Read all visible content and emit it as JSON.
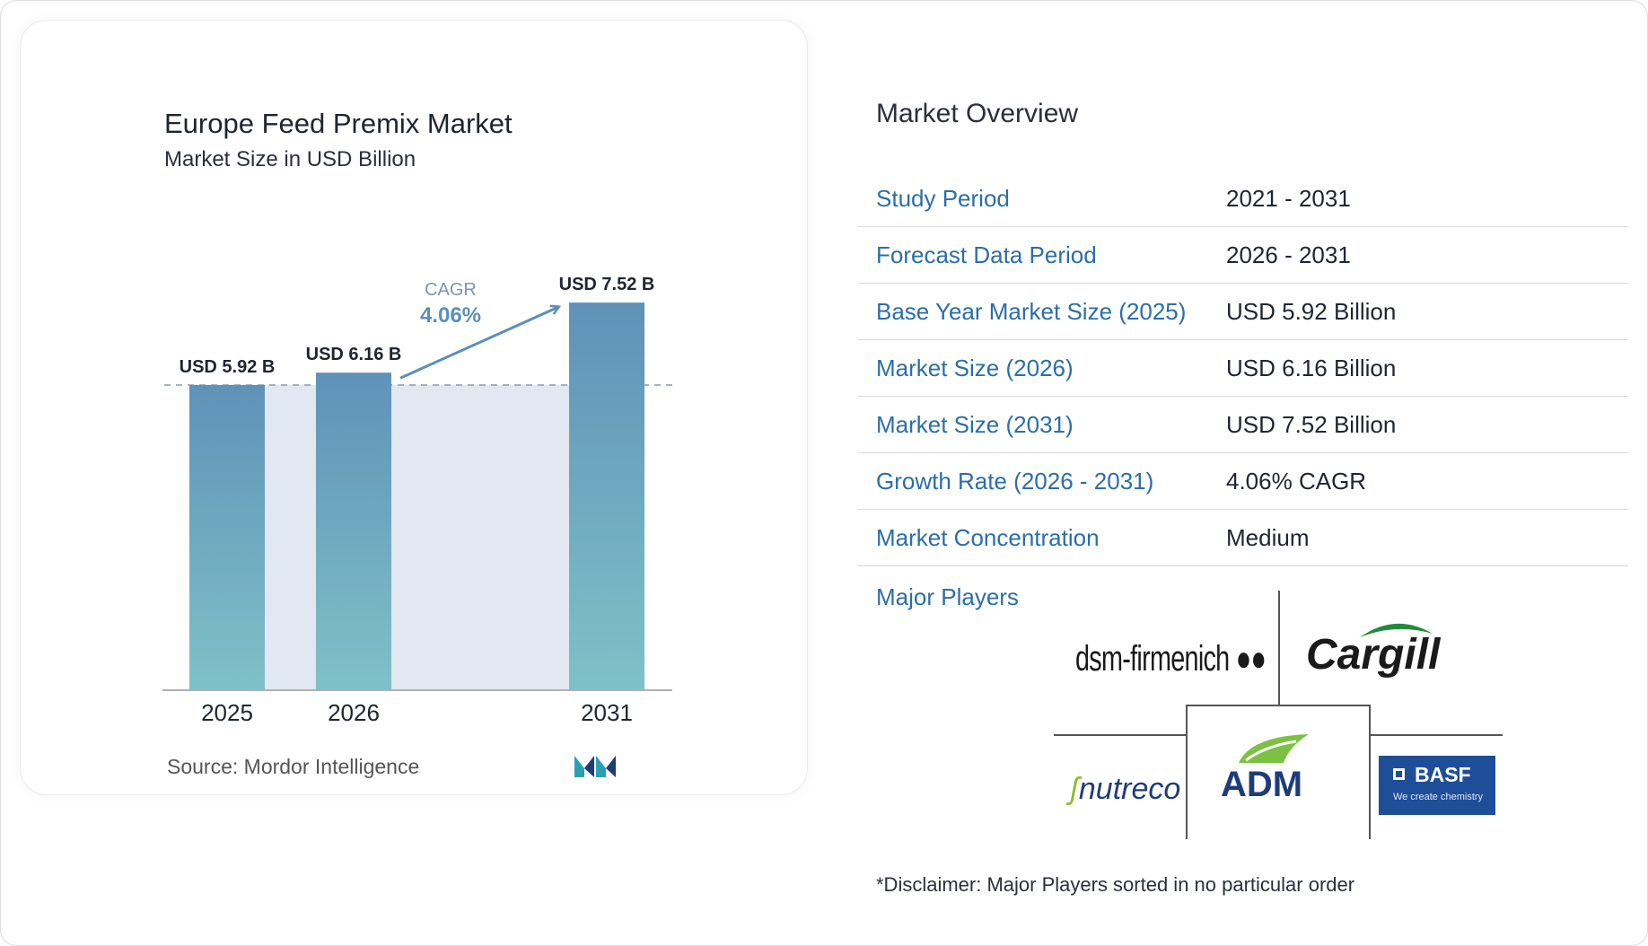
{
  "chart_card": {
    "title": "Europe Feed Premix Market",
    "subtitle": "Market Size in USD Billion",
    "source": "Source:  Mordor Intelligence"
  },
  "chart_data": {
    "type": "bar",
    "title": "Europe Feed Premix Market",
    "subtitle": "Market Size in USD Billion",
    "categories": [
      "2025",
      "2026",
      "2031"
    ],
    "values": [
      5.92,
      6.16,
      7.52
    ],
    "data_labels": [
      "USD 5.92 B",
      "USD 6.16 B",
      "USD 7.52 B"
    ],
    "cagr_label": "CAGR",
    "cagr_value": "4.06%",
    "colors": {
      "bar_top": "#5f92b8",
      "bar_bottom": "#7fc1c8",
      "band": "#e1e8f1",
      "accent": "#5a8fba"
    }
  },
  "overview": {
    "title": "Market Overview",
    "rows": [
      {
        "label": "Study Period",
        "value": "2021 - 2031"
      },
      {
        "label": "Forecast Data Period",
        "value": "2026 - 2031"
      },
      {
        "label": "Base Year Market Size (2025)",
        "value": "USD 5.92 Billion"
      },
      {
        "label": "Market Size (2026)",
        "value": "USD 6.16 Billion"
      },
      {
        "label": "Market Size (2031)",
        "value": "USD 7.52 Billion"
      },
      {
        "label": "Growth Rate (2026 - 2031)",
        "value": "4.06% CAGR"
      },
      {
        "label": "Market Concentration",
        "value": "Medium"
      }
    ],
    "major_players_label": "Major Players",
    "players": {
      "dsm": "dsm-firmenich",
      "cargill": "Cargill",
      "nutreco": "nutreco",
      "adm": "ADM",
      "basf": "BASF",
      "basf_tagline": "We create chemistry"
    },
    "disclaimer": "*Disclaimer: Major Players sorted in no particular order"
  }
}
